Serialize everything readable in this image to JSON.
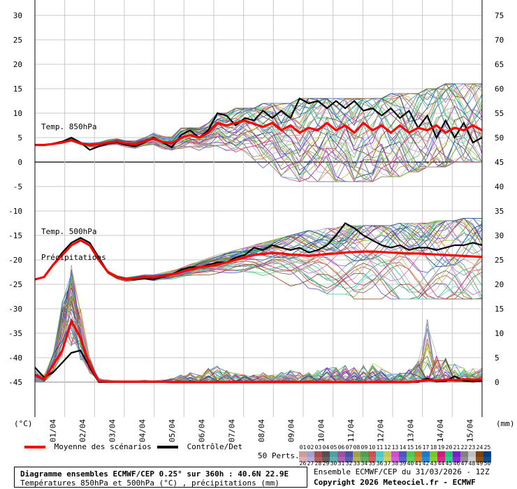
{
  "chart_data": {
    "type": "line",
    "annotations": {
      "t850": "Temp. 850hPa",
      "t500": "Temp. 500hPa",
      "precip": "Précipitations"
    },
    "left_axis": {
      "unit": "(°C)",
      "ticks": [
        30,
        25,
        20,
        15,
        10,
        5,
        0,
        -5,
        -10,
        -15,
        -20,
        -25,
        -30,
        -35,
        -40,
        -45
      ]
    },
    "right_axis": {
      "unit": "(mm)",
      "ticks": [
        75,
        70,
        65,
        60,
        55,
        50,
        45,
        40,
        35,
        30,
        25,
        20,
        15,
        10,
        5,
        0
      ]
    },
    "x_ticks": [
      "01/04",
      "02/04",
      "03/04",
      "04/04",
      "05/04",
      "06/04",
      "07/04",
      "08/04",
      "09/04",
      "10/04",
      "11/04",
      "12/04",
      "13/04",
      "14/04",
      "15/04"
    ],
    "xlim_hours": [
      0,
      360
    ],
    "series": [
      {
        "name": "Moyenne des scénarios",
        "color": "#ff0000",
        "t850": [
          3.5,
          3.5,
          3.7,
          4.0,
          4.5,
          3.8,
          3.5,
          3.6,
          4.0,
          4.2,
          3.8,
          3.6,
          4.2,
          4.8,
          4.1,
          3.8,
          5.0,
          5.5,
          5.0,
          6.0,
          8.0,
          7.5,
          8.0,
          8.5,
          7.8,
          7.2,
          8.0,
          6.5,
          7.5,
          6.0,
          7.0,
          6.5,
          8.0,
          6.5,
          7.5,
          6.0,
          8.0,
          6.5,
          7.5,
          6.0,
          7.5,
          6.0,
          7.0,
          6.5,
          7.5,
          6.0,
          7.0,
          6.5,
          7.5,
          6.5
        ],
        "t500": [
          -24.0,
          -23.5,
          -21.0,
          -19.0,
          -17.0,
          -16.0,
          -17.0,
          -20.0,
          -22.5,
          -23.5,
          -24.0,
          -23.8,
          -23.5,
          -23.6,
          -23.3,
          -23.0,
          -22.5,
          -22.0,
          -21.5,
          -21.3,
          -21.0,
          -20.5,
          -20.0,
          -19.5,
          -19.0,
          -18.8,
          -18.6,
          -18.7,
          -18.9,
          -19.0,
          -19.2,
          -19.0,
          -18.8,
          -18.7,
          -18.5,
          -18.4,
          -18.3,
          -18.3,
          -18.4,
          -18.5,
          -18.6,
          -18.7,
          -18.7,
          -18.8,
          -18.9,
          -19.0,
          -19.1,
          -19.2,
          -19.3,
          -19.4
        ],
        "precip": [
          1.5,
          0.6,
          3.5,
          6.5,
          12.5,
          9.0,
          3.5,
          0.2,
          0.1,
          0.1,
          0.1,
          0.1,
          0.1,
          0.1,
          0.1,
          0.0,
          0.0,
          0.0,
          0.0,
          0.0,
          0.0,
          0.0,
          0.0,
          0.0,
          0.0,
          0.0,
          0.0,
          0.0,
          0.0,
          0.0,
          0.0,
          0.0,
          0.0,
          0.0,
          0.0,
          0.0,
          0.0,
          0.0,
          0.0,
          0.0,
          0.0,
          0.0,
          0.2,
          0.4,
          0.3,
          0.5,
          0.4,
          0.6,
          0.5,
          0.5
        ]
      },
      {
        "name": "Contrôle/Det",
        "color": "#000000",
        "t850": [
          3.5,
          3.4,
          3.8,
          4.2,
          5.0,
          4.0,
          2.5,
          3.2,
          3.8,
          4.0,
          3.5,
          3.2,
          4.0,
          5.0,
          4.0,
          3.0,
          5.5,
          6.5,
          5.0,
          6.5,
          10.0,
          9.5,
          7.5,
          9.0,
          8.5,
          10.5,
          9.0,
          10.5,
          9.0,
          13.0,
          12.0,
          12.5,
          11.0,
          12.5,
          11.0,
          12.5,
          10.5,
          11.0,
          9.5,
          11.0,
          9.0,
          10.5,
          7.0,
          9.5,
          5.0,
          8.5,
          5.0,
          8.0,
          4.0,
          5.0
        ],
        "t500": [
          -24.0,
          -23.5,
          -21.0,
          -18.5,
          -16.5,
          -15.5,
          -16.5,
          -19.5,
          -22.5,
          -23.5,
          -24.0,
          -24.0,
          -23.8,
          -24.0,
          -23.5,
          -23.0,
          -22.0,
          -21.5,
          -21.5,
          -21.0,
          -20.5,
          -20.5,
          -19.5,
          -19.0,
          -17.5,
          -18.0,
          -17.0,
          -17.5,
          -18.0,
          -17.5,
          -18.5,
          -18.0,
          -17.0,
          -15.0,
          -12.5,
          -13.5,
          -15.0,
          -16.0,
          -17.0,
          -17.5,
          -17.0,
          -18.0,
          -17.5,
          -17.5,
          -18.0,
          -17.5,
          -17.0,
          -17.0,
          -16.5,
          -17.0
        ],
        "precip": [
          3.0,
          1.0,
          2.0,
          4.0,
          6.0,
          6.5,
          3.0,
          0.0,
          0.0,
          0.0,
          0.0,
          0.0,
          0.0,
          0.0,
          0.0,
          0.0,
          0.0,
          0.0,
          0.0,
          0.0,
          0.0,
          0.0,
          0.0,
          0.0,
          0.0,
          0.0,
          0.0,
          0.0,
          0.0,
          0.0,
          0.0,
          0.0,
          0.0,
          0.0,
          0.0,
          0.0,
          0.0,
          0.0,
          0.0,
          0.0,
          0.0,
          0.0,
          0.0,
          0.8,
          0.1,
          0.2,
          1.2,
          0.3,
          0.1,
          0.3
        ]
      }
    ],
    "perturbations": {
      "count": 50,
      "t850_spread": {
        "min": [
          3,
          3,
          3,
          3,
          3,
          3,
          2,
          2,
          2,
          2,
          2,
          2,
          2,
          2,
          2,
          2,
          1,
          1,
          1,
          1,
          0,
          0,
          -1,
          -1,
          -2,
          -2,
          -3,
          -3,
          -4,
          -4,
          -4,
          -4,
          -4,
          -4,
          -4,
          -4,
          -4,
          -4,
          -3,
          -3,
          -3,
          -2,
          -2,
          -1,
          -1,
          -1,
          0,
          0,
          0,
          0
        ],
        "max": [
          4,
          4,
          4,
          5,
          6,
          5,
          5,
          5,
          5,
          5,
          5,
          5,
          5,
          6,
          6,
          6,
          7,
          7,
          7,
          8,
          10,
          10,
          11,
          11,
          11,
          12,
          12,
          12,
          12,
          13,
          13,
          13,
          13,
          13,
          13,
          13,
          13,
          13,
          13,
          14,
          14,
          14,
          14,
          15,
          15,
          16,
          16,
          16,
          16,
          16
        ]
      },
      "t500_spread": {
        "min": [
          -24,
          -24,
          -22,
          -20,
          -18,
          -17,
          -18,
          -21,
          -23,
          -24,
          -24.5,
          -24.5,
          -24.5,
          -24.5,
          -24.5,
          -24.5,
          -24,
          -24,
          -24,
          -24,
          -24,
          -24,
          -24,
          -24,
          -24,
          -25,
          -25,
          -25,
          -26,
          -26,
          -26,
          -26,
          -27,
          -27,
          -27,
          -28,
          -28,
          -28,
          -28,
          -28,
          -28,
          -28,
          -28,
          -28,
          -28,
          -28,
          -28,
          -28,
          -28,
          -28
        ],
        "max": [
          -23.5,
          -23,
          -20,
          -18,
          -16,
          -15,
          -16,
          -19,
          -21,
          -22,
          -22.5,
          -22.5,
          -22.5,
          -22,
          -22,
          -21.5,
          -21,
          -20.5,
          -20,
          -19.5,
          -19,
          -18.5,
          -18,
          -17.5,
          -17,
          -16.5,
          -16,
          -15.5,
          -15,
          -14.5,
          -14,
          -14,
          -13.5,
          -13.5,
          -13,
          -13,
          -13,
          -13,
          -13,
          -13,
          -12.5,
          -12.5,
          -12.5,
          -12.5,
          -12,
          -12,
          -12,
          -11.5,
          -11.5,
          -11.5
        ]
      },
      "precip_max": [
        2.5,
        1.5,
        6.0,
        17.0,
        24.0,
        15.0,
        5.0,
        0.8,
        0.5,
        0.3,
        0.3,
        0.3,
        0.5,
        0.3,
        0.5,
        0.8,
        1.5,
        2.0,
        1.5,
        3.0,
        3.5,
        2.5,
        2.0,
        1.5,
        1.5,
        2.0,
        1.5,
        2.0,
        2.5,
        2.0,
        2.0,
        2.5,
        3.0,
        4.0,
        3.5,
        3.0,
        3.5,
        4.0,
        3.0,
        2.0,
        2.0,
        3.0,
        5.0,
        13.0,
        6.0,
        5.0,
        4.0,
        3.0,
        3.0,
        3.0
      ]
    }
  },
  "legend": {
    "mean_label": "Moyenne des scénarios",
    "control_label": "Contrôle/Det",
    "perts_label": "50 Perts.",
    "perts_numbers_top": [
      "01",
      "02",
      "03",
      "04",
      "05",
      "06",
      "07",
      "08",
      "09",
      "10",
      "11",
      "12",
      "13",
      "14",
      "15",
      "16",
      "17",
      "18",
      "19",
      "20",
      "21",
      "22",
      "23",
      "24",
      "25"
    ],
    "perts_numbers_bottom": [
      "26",
      "27",
      "28",
      "29",
      "30",
      "31",
      "32",
      "33",
      "34",
      "35",
      "36",
      "37",
      "38",
      "39",
      "40",
      "41",
      "42",
      "43",
      "44",
      "45",
      "46",
      "47",
      "48",
      "49",
      "50"
    ],
    "perts_colors_top": [
      "#c8a0a0",
      "#a0a0c8",
      "#a05050",
      "#505050",
      "#50a0a0",
      "#a050a0",
      "#5050a0",
      "#a0a050",
      "#50a050",
      "#c85050",
      "#50c8c8",
      "#c8c850",
      "#c850c8",
      "#5050c8",
      "#50c850",
      "#c87820",
      "#2078c8",
      "#78c820",
      "#c82078",
      "#20c878",
      "#7820c8",
      "#808080",
      "#c0c0c0",
      "#804000",
      "#004080"
    ],
    "perts_colors_bottom": [
      "#e0b0b0",
      "#b0b0e0",
      "#b06060",
      "#606060",
      "#60b0b0",
      "#b060b0",
      "#6060b0",
      "#b0b060",
      "#60b060",
      "#d06060",
      "#60d0d0",
      "#d0d060",
      "#d060d0",
      "#6060d0",
      "#60d060",
      "#d08830",
      "#3088d0",
      "#88d030",
      "#d03088",
      "#30d088",
      "#8830d0",
      "#909090",
      "#d0d0d0",
      "#905010",
      "#105090"
    ]
  },
  "info": {
    "title": "Diagramme ensembles ECMWF/CEP 0.25° sur 360h : 40.6N 22.9E",
    "subtitle": "Températures 850hPa et 500hPa (°C) , précipitations (mm)",
    "run": "Ensemble ECMWF/CEP du 31/03/2026 - 12Z",
    "copyright": "Copyright 2026 Meteociel.fr - ECMWF"
  }
}
